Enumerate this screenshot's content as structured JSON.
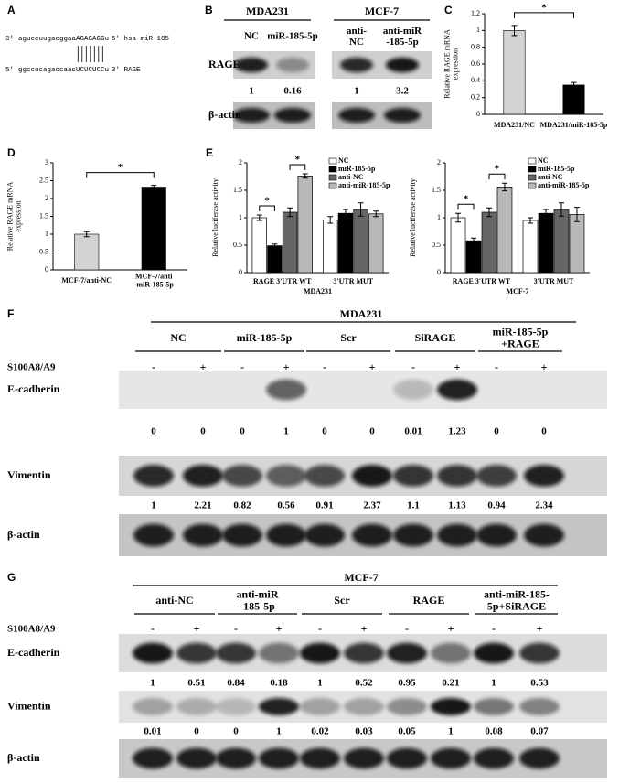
{
  "panel_a": {
    "label": "A",
    "row1": [
      "3'",
      "aguccuugacggaaAGAGAGGu",
      "5' hsa-miR-185"
    ],
    "row2": [
      "5'",
      "ggccucagaccaacUCUCUCCu",
      "3' RAGE"
    ]
  },
  "panel_b": {
    "label": "B",
    "groups": [
      {
        "title": "MDA231",
        "lanes": [
          "NC",
          "miR-185-5p"
        ],
        "values": [
          1,
          0.16
        ]
      },
      {
        "title": "MCF-7",
        "lanes": [
          "anti-\nNC",
          "anti-miR\n-185-5p"
        ],
        "values": [
          1,
          3.2
        ]
      }
    ],
    "rows": [
      "RAGE",
      "β-actin"
    ]
  },
  "chart_data": [
    {
      "type": "bar",
      "panel": "C",
      "ylabel": "Relative RAGE mRNA\nexpression",
      "categories": [
        "MDA231/NC",
        "MDA231/miR-185-5p"
      ],
      "values": [
        1.0,
        0.35
      ],
      "errors": [
        0.06,
        0.03
      ],
      "colors": [
        "#d3d3d3",
        "#000000"
      ],
      "ylim": [
        0,
        1.2
      ],
      "yticks": [
        0,
        0.2,
        0.4,
        0.6,
        0.8,
        1,
        1.2
      ],
      "annotations": [
        "*"
      ]
    },
    {
      "type": "bar",
      "panel": "D",
      "ylabel": "Relative RAGE mRNA\nexpression",
      "categories": [
        "MCF-7/anti-NC",
        "MCF-7/anti\n-miR-185-5p"
      ],
      "values": [
        1.0,
        2.32
      ],
      "errors": [
        0.07,
        0.05
      ],
      "colors": [
        "#d3d3d3",
        "#000000"
      ],
      "ylim": [
        0,
        3
      ],
      "yticks": [
        0,
        0.5,
        1,
        1.5,
        2,
        2.5,
        3
      ],
      "annotations": [
        "*"
      ]
    },
    {
      "type": "grouped_bar",
      "panel": "E",
      "ylabel": "Relative luciferase activity",
      "xlabel": "MDA231",
      "categories": [
        "RAGE 3'UTR WT",
        "3'UTR MUT"
      ],
      "series": [
        {
          "name": "NC",
          "color": "#ffffff",
          "values": [
            1.0,
            0.96
          ],
          "errors": [
            0.05,
            0.06
          ]
        },
        {
          "name": "miR-185-5p",
          "color": "#000000",
          "values": [
            0.49,
            1.08
          ],
          "errors": [
            0.03,
            0.07
          ]
        },
        {
          "name": "anti-NC",
          "color": "#666666",
          "values": [
            1.1,
            1.15
          ],
          "errors": [
            0.08,
            0.12
          ]
        },
        {
          "name": "anti-miR-185-5p",
          "color": "#b8b8b8",
          "values": [
            1.76,
            1.07
          ],
          "errors": [
            0.04,
            0.05
          ]
        }
      ],
      "ylim": [
        0,
        2
      ],
      "yticks": [
        0,
        0.5,
        1,
        1.5,
        2
      ],
      "annotations": [
        "*",
        "*"
      ]
    },
    {
      "type": "grouped_bar",
      "ylabel": "Relative luciferase activity",
      "xlabel": "MCF-7",
      "categories": [
        "RAGE 3'UTR WT",
        "3'UTR MUT"
      ],
      "series": [
        {
          "name": "NC",
          "color": "#ffffff",
          "values": [
            1.0,
            0.95
          ],
          "errors": [
            0.08,
            0.05
          ]
        },
        {
          "name": "miR-185-5p",
          "color": "#000000",
          "values": [
            0.58,
            1.08
          ],
          "errors": [
            0.05,
            0.07
          ]
        },
        {
          "name": "anti-NC",
          "color": "#666666",
          "values": [
            1.1,
            1.15
          ],
          "errors": [
            0.08,
            0.12
          ]
        },
        {
          "name": "anti-miR-185-5p",
          "color": "#b8b8b8",
          "values": [
            1.56,
            1.06
          ],
          "errors": [
            0.07,
            0.13
          ]
        }
      ],
      "ylim": [
        0,
        2
      ],
      "yticks": [
        0,
        0.5,
        1,
        1.5,
        2
      ],
      "annotations": [
        "*",
        "*"
      ]
    }
  ],
  "panel_f": {
    "label": "F",
    "title": "MDA231",
    "groups": [
      "NC",
      "miR-185-5p",
      "Scr",
      "SiRAGE",
      "miR-185-5p\n+RAGE"
    ],
    "treatment_label": "S100A8/A9",
    "treatment": [
      "-",
      "+",
      "-",
      "+",
      "-",
      "+",
      "-",
      "+",
      "-",
      "+"
    ],
    "rows": [
      {
        "name": "E-cadherin",
        "values": [
          0,
          0,
          0,
          1,
          0,
          0,
          0.01,
          1.23,
          0,
          0
        ]
      },
      {
        "name": "Vimentin",
        "values": [
          1,
          2.21,
          0.82,
          0.56,
          0.91,
          2.37,
          1.1,
          1.13,
          0.94,
          2.34
        ]
      },
      {
        "name": "β-actin"
      }
    ]
  },
  "panel_g": {
    "label": "G",
    "title": "MCF-7",
    "groups": [
      "anti-NC",
      "anti-miR\n-185-5p",
      "Scr",
      "RAGE",
      "anti-miR-185-\n5p+SiRAGE"
    ],
    "treatment_label": "S100A8/A9",
    "treatment": [
      "-",
      "+",
      "-",
      "+",
      "-",
      "+",
      "-",
      "+",
      "-",
      "+"
    ],
    "rows": [
      {
        "name": "E-cadherin",
        "values": [
          1,
          0.51,
          0.84,
          0.18,
          1,
          0.52,
          0.95,
          0.21,
          1,
          0.53
        ]
      },
      {
        "name": "Vimentin",
        "values": [
          0.01,
          0,
          0,
          1,
          0.02,
          0.03,
          0.05,
          1,
          0.08,
          0.07
        ]
      },
      {
        "name": "β-actin"
      }
    ]
  }
}
